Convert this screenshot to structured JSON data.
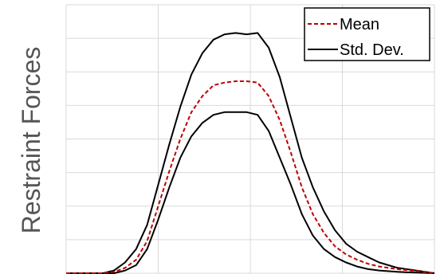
{
  "chart_data": {
    "type": "line",
    "title": "",
    "xlabel": "",
    "ylabel": "Restraint Forces",
    "xlim": [
      0,
      100
    ],
    "ylim": [
      0,
      100
    ],
    "grid": true,
    "legend_position": "top-right",
    "x": [
      0,
      10,
      13,
      16,
      19,
      22,
      25,
      28,
      31,
      34,
      37,
      40,
      43,
      46,
      49,
      52,
      55,
      58,
      61,
      64,
      67,
      70,
      73,
      76,
      79,
      82,
      85,
      90,
      95,
      100
    ],
    "series": [
      {
        "name": "Mean",
        "style": "dashed",
        "color": "#c00000",
        "values": [
          0,
          0,
          0.5,
          2,
          5,
          12,
          25,
          38,
          50,
          60,
          66,
          70,
          71,
          71.5,
          71.5,
          71,
          66,
          57,
          45,
          32,
          22,
          15,
          10,
          7,
          5,
          3.5,
          2.5,
          1.5,
          0.8,
          0
        ]
      },
      {
        "name": "Std. Dev.",
        "style": "solid",
        "color": "#000000",
        "values": [
          0,
          0,
          1,
          4,
          9,
          18,
          33,
          48,
          62,
          74,
          82,
          87,
          89,
          89.5,
          89,
          89.5,
          84,
          73,
          58,
          43,
          32,
          23,
          16,
          11,
          8,
          6,
          4,
          2,
          1,
          0
        ]
      },
      {
        "name": "",
        "style": "solid",
        "color": "#000000",
        "values": [
          0,
          0,
          0,
          1,
          3,
          9,
          20,
          32,
          43,
          51,
          56,
          59,
          60,
          60,
          60,
          59,
          53,
          43,
          33,
          22,
          14,
          9,
          6,
          4,
          2.5,
          1.5,
          1,
          0.5,
          0.2,
          0
        ]
      }
    ]
  }
}
